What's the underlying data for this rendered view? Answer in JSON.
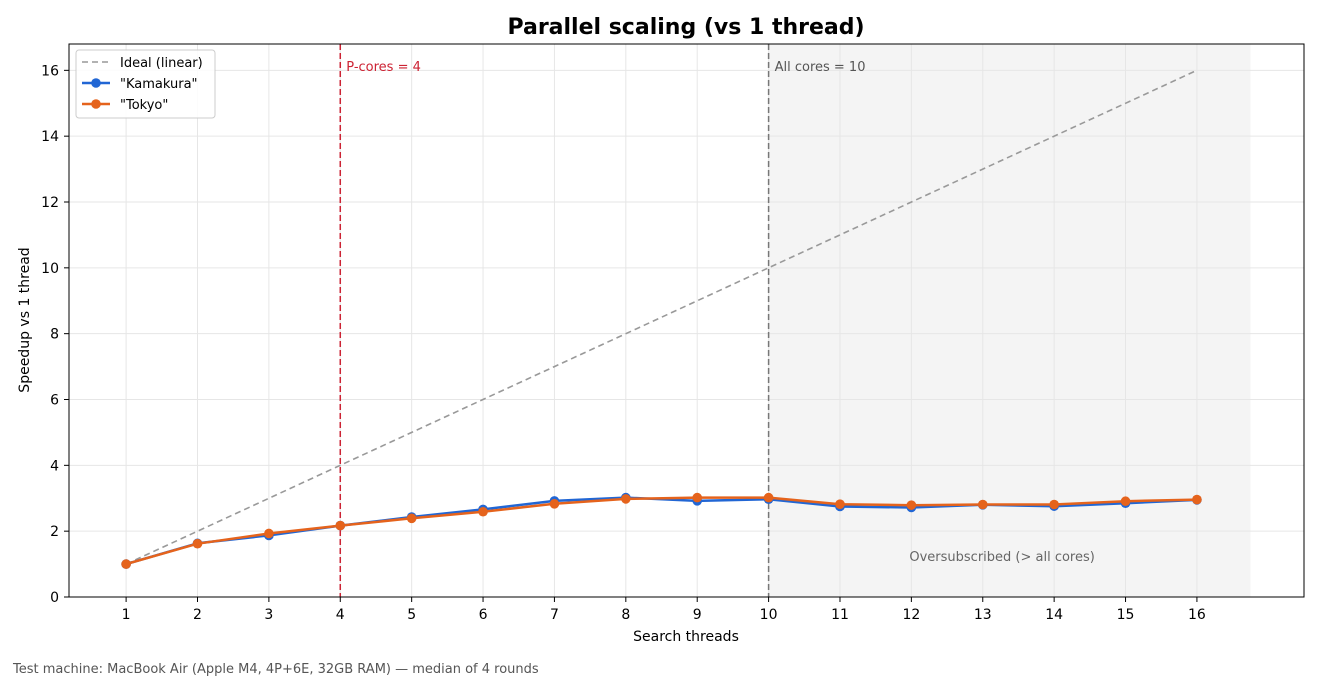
{
  "chart_data": {
    "type": "line",
    "title": "Parallel scaling (vs 1 thread)",
    "xlabel": "Search threads",
    "ylabel": "Speedup vs 1 thread",
    "x": [
      1,
      2,
      3,
      4,
      5,
      6,
      7,
      8,
      9,
      10,
      11,
      12,
      13,
      14,
      15,
      16
    ],
    "xticks": [
      "1",
      "2",
      "3",
      "4",
      "5",
      "6",
      "7",
      "8",
      "9",
      "10",
      "11",
      "12",
      "13",
      "14",
      "15",
      "16"
    ],
    "yticks": [
      "0",
      "2",
      "4",
      "6",
      "8",
      "10",
      "12",
      "14",
      "16"
    ],
    "xlim": [
      0.2,
      17.5
    ],
    "ylim": [
      0,
      16.8
    ],
    "grid": true,
    "legend_position": "top-left",
    "series": [
      {
        "name": "Ideal (linear)",
        "style": "dashed",
        "color": "#999999",
        "values": [
          1,
          2,
          3,
          4,
          5,
          6,
          7,
          8,
          9,
          10,
          11,
          12,
          13,
          14,
          15,
          16
        ]
      },
      {
        "name": "\"Kamakura\"",
        "style": "solid-marker",
        "color": "#2166d4",
        "values": [
          1.0,
          1.63,
          1.87,
          2.17,
          2.43,
          2.66,
          2.92,
          3.02,
          2.92,
          2.97,
          2.75,
          2.72,
          2.8,
          2.76,
          2.85,
          2.95
        ]
      },
      {
        "name": "\"Tokyo\"",
        "style": "solid-marker",
        "color": "#e5631c",
        "values": [
          1.0,
          1.62,
          1.93,
          2.17,
          2.39,
          2.59,
          2.83,
          2.98,
          3.02,
          3.02,
          2.82,
          2.79,
          2.81,
          2.81,
          2.91,
          2.96
        ]
      }
    ],
    "vlines": [
      {
        "x": 4,
        "label": "P-cores = 4",
        "color": "#cc2233"
      },
      {
        "x": 10,
        "label": "All cores = 10",
        "color": "#777777"
      }
    ],
    "shaded_region": {
      "x_start": 10,
      "x_end": 16.75,
      "label": "Oversubscribed (> all cores)",
      "color": "#f4f4f4"
    }
  },
  "footnote": "Test machine: MacBook Air (Apple M4, 4P+6E, 32GB RAM) — median of 4 rounds"
}
